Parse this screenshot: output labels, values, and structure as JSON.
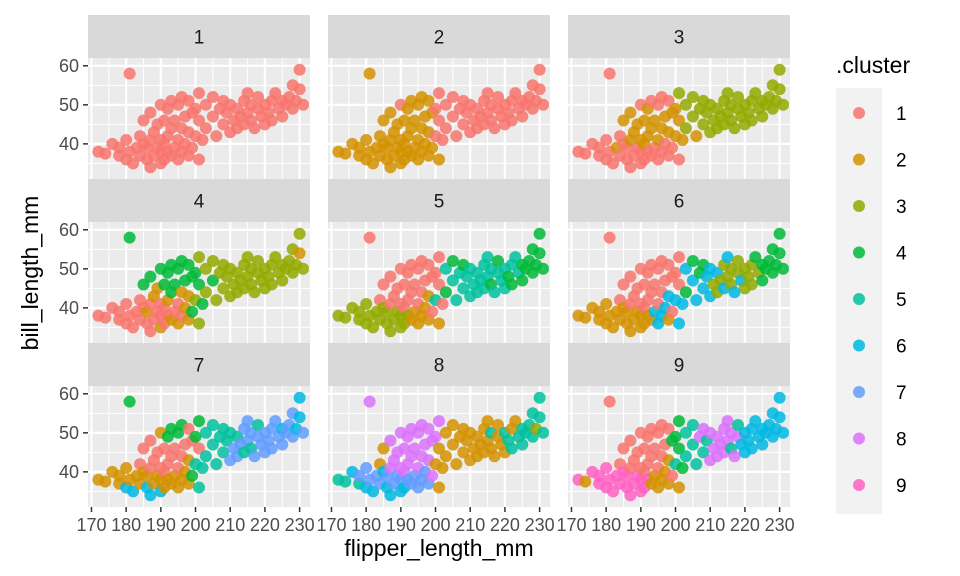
{
  "chart_data": {
    "type": "scatter",
    "facets": [
      "1",
      "2",
      "3",
      "4",
      "5",
      "6",
      "7",
      "8",
      "9"
    ],
    "xlabel": "flipper_length_mm",
    "ylabel": "bill_length_mm",
    "xlim": [
      169,
      233
    ],
    "ylim": [
      31,
      62
    ],
    "xticks": [
      170,
      180,
      190,
      200,
      210,
      220,
      230
    ],
    "yticks": [
      40,
      50,
      60
    ],
    "legend": {
      "title": ".cluster",
      "placement": "right",
      "entries": [
        {
          "label": "1",
          "color": "#F8766D"
        },
        {
          "label": "2",
          "color": "#D39200"
        },
        {
          "label": "3",
          "color": "#93AA00"
        },
        {
          "label": "4",
          "color": "#00BA38"
        },
        {
          "label": "5",
          "color": "#00C19F"
        },
        {
          "label": "6",
          "color": "#00B9E3"
        },
        {
          "label": "7",
          "color": "#619CFF"
        },
        {
          "label": "8",
          "color": "#DB72FB"
        },
        {
          "label": "9",
          "color": "#FF61C3"
        }
      ]
    },
    "points": [
      {
        "x": 172,
        "y": 38
      },
      {
        "x": 174,
        "y": 37.5
      },
      {
        "x": 176,
        "y": 40
      },
      {
        "x": 178,
        "y": 37
      },
      {
        "x": 178,
        "y": 39
      },
      {
        "x": 180,
        "y": 36
      },
      {
        "x": 180,
        "y": 41
      },
      {
        "x": 181,
        "y": 58
      },
      {
        "x": 181,
        "y": 38
      },
      {
        "x": 182,
        "y": 35
      },
      {
        "x": 183,
        "y": 39
      },
      {
        "x": 184,
        "y": 42
      },
      {
        "x": 184,
        "y": 37
      },
      {
        "x": 185,
        "y": 40
      },
      {
        "x": 185,
        "y": 46
      },
      {
        "x": 186,
        "y": 36
      },
      {
        "x": 186,
        "y": 39
      },
      {
        "x": 187,
        "y": 41
      },
      {
        "x": 187,
        "y": 34
      },
      {
        "x": 187,
        "y": 48
      },
      {
        "x": 188,
        "y": 37
      },
      {
        "x": 188,
        "y": 43
      },
      {
        "x": 189,
        "y": 39
      },
      {
        "x": 189,
        "y": 45
      },
      {
        "x": 190,
        "y": 35
      },
      {
        "x": 190,
        "y": 38
      },
      {
        "x": 190,
        "y": 41
      },
      {
        "x": 190,
        "y": 50
      },
      {
        "x": 191,
        "y": 36
      },
      {
        "x": 191,
        "y": 40
      },
      {
        "x": 191,
        "y": 46
      },
      {
        "x": 192,
        "y": 38
      },
      {
        "x": 192,
        "y": 42
      },
      {
        "x": 192,
        "y": 49
      },
      {
        "x": 193,
        "y": 37
      },
      {
        "x": 193,
        "y": 44
      },
      {
        "x": 193,
        "y": 51
      },
      {
        "x": 194,
        "y": 39
      },
      {
        "x": 194,
        "y": 46
      },
      {
        "x": 195,
        "y": 36
      },
      {
        "x": 195,
        "y": 41
      },
      {
        "x": 195,
        "y": 50
      },
      {
        "x": 196,
        "y": 38
      },
      {
        "x": 196,
        "y": 44
      },
      {
        "x": 196,
        "y": 52
      },
      {
        "x": 197,
        "y": 40
      },
      {
        "x": 197,
        "y": 47
      },
      {
        "x": 198,
        "y": 37
      },
      {
        "x": 198,
        "y": 43
      },
      {
        "x": 198,
        "y": 51
      },
      {
        "x": 199,
        "y": 39
      },
      {
        "x": 199,
        "y": 48
      },
      {
        "x": 200,
        "y": 42
      },
      {
        "x": 200,
        "y": 49
      },
      {
        "x": 201,
        "y": 36
      },
      {
        "x": 201,
        "y": 46
      },
      {
        "x": 201,
        "y": 53
      },
      {
        "x": 202,
        "y": 41
      },
      {
        "x": 203,
        "y": 50
      },
      {
        "x": 203,
        "y": 44
      },
      {
        "x": 205,
        "y": 47
      },
      {
        "x": 205,
        "y": 52
      },
      {
        "x": 206,
        "y": 42
      },
      {
        "x": 207,
        "y": 49
      },
      {
        "x": 208,
        "y": 45
      },
      {
        "x": 208,
        "y": 51
      },
      {
        "x": 209,
        "y": 48
      },
      {
        "x": 210,
        "y": 43
      },
      {
        "x": 210,
        "y": 50
      },
      {
        "x": 211,
        "y": 46
      },
      {
        "x": 212,
        "y": 49
      },
      {
        "x": 212,
        "y": 44
      },
      {
        "x": 213,
        "y": 47
      },
      {
        "x": 214,
        "y": 51
      },
      {
        "x": 214,
        "y": 45
      },
      {
        "x": 215,
        "y": 48
      },
      {
        "x": 215,
        "y": 53
      },
      {
        "x": 216,
        "y": 46
      },
      {
        "x": 216,
        "y": 50
      },
      {
        "x": 217,
        "y": 44
      },
      {
        "x": 218,
        "y": 49
      },
      {
        "x": 218,
        "y": 52
      },
      {
        "x": 219,
        "y": 47
      },
      {
        "x": 220,
        "y": 50
      },
      {
        "x": 220,
        "y": 45
      },
      {
        "x": 221,
        "y": 48
      },
      {
        "x": 222,
        "y": 51
      },
      {
        "x": 222,
        "y": 46
      },
      {
        "x": 223,
        "y": 53
      },
      {
        "x": 224,
        "y": 49
      },
      {
        "x": 225,
        "y": 51
      },
      {
        "x": 225,
        "y": 47
      },
      {
        "x": 226,
        "y": 50
      },
      {
        "x": 227,
        "y": 52
      },
      {
        "x": 228,
        "y": 49
      },
      {
        "x": 228,
        "y": 55
      },
      {
        "x": 229,
        "y": 51
      },
      {
        "x": 230,
        "y": 59
      },
      {
        "x": 230,
        "y": 54
      },
      {
        "x": 231,
        "y": 50
      }
    ],
    "cluster_assignments": [
      [
        1,
        1,
        1,
        1,
        1,
        1,
        1,
        1,
        1,
        1,
        1,
        1,
        1,
        1,
        1,
        1,
        1,
        1,
        1,
        1,
        1,
        1,
        1,
        1,
        1,
        1,
        1,
        1,
        1,
        1,
        1,
        1,
        1,
        1,
        1,
        1,
        1,
        1,
        1,
        1,
        1,
        1,
        1,
        1,
        1,
        1,
        1,
        1,
        1,
        1,
        1,
        1,
        1,
        1,
        1,
        1,
        1,
        1,
        1,
        1,
        1,
        1,
        1,
        1,
        1,
        1,
        1,
        1,
        1,
        1,
        1,
        1,
        1,
        1,
        1,
        1,
        1,
        1,
        1,
        1,
        1,
        1,
        1,
        1,
        1,
        1,
        1,
        1,
        1,
        1,
        1,
        1,
        1,
        1,
        1,
        1,
        1,
        1,
        1,
        1
      ],
      [
        2,
        2,
        2,
        2,
        2,
        2,
        2,
        2,
        2,
        2,
        2,
        2,
        2,
        2,
        2,
        2,
        2,
        2,
        2,
        2,
        2,
        2,
        2,
        2,
        2,
        2,
        2,
        1,
        2,
        2,
        2,
        2,
        2,
        2,
        2,
        2,
        2,
        2,
        2,
        2,
        2,
        2,
        2,
        2,
        2,
        2,
        2,
        2,
        2,
        2,
        2,
        2,
        1,
        1,
        2,
        1,
        1,
        1,
        1,
        1,
        1,
        1,
        1,
        1,
        1,
        1,
        1,
        1,
        1,
        1,
        1,
        1,
        1,
        1,
        1,
        1,
        1,
        1,
        1,
        1,
        1,
        1,
        1,
        1,
        1,
        1,
        1,
        1,
        1,
        1,
        1,
        1,
        1,
        1,
        1,
        1,
        1,
        1,
        1,
        1
      ],
      [
        1,
        1,
        1,
        1,
        1,
        1,
        1,
        1,
        1,
        1,
        2,
        1,
        1,
        1,
        2,
        1,
        1,
        2,
        1,
        2,
        1,
        2,
        1,
        2,
        1,
        1,
        2,
        1,
        1,
        2,
        2,
        1,
        2,
        2,
        1,
        2,
        1,
        1,
        2,
        1,
        2,
        1,
        1,
        2,
        1,
        1,
        2,
        1,
        2,
        1,
        1,
        2,
        2,
        2,
        1,
        2,
        3,
        2,
        3,
        3,
        3,
        3,
        2,
        3,
        3,
        3,
        3,
        3,
        3,
        3,
        3,
        3,
        3,
        3,
        3,
        3,
        3,
        3,
        3,
        3,
        3,
        3,
        3,
        3,
        3,
        3,
        3,
        3,
        3,
        3,
        3,
        3,
        3,
        3,
        3,
        3,
        3,
        3,
        3,
        3
      ],
      [
        1,
        1,
        1,
        1,
        1,
        1,
        1,
        4,
        1,
        1,
        1,
        1,
        1,
        1,
        4,
        1,
        2,
        1,
        1,
        4,
        1,
        2,
        1,
        2,
        2,
        1,
        1,
        4,
        1,
        1,
        4,
        1,
        2,
        4,
        2,
        4,
        4,
        1,
        4,
        2,
        1,
        4,
        1,
        2,
        4,
        2,
        4,
        2,
        2,
        4,
        4,
        4,
        3,
        4,
        3,
        4,
        3,
        4,
        3,
        3,
        4,
        3,
        3,
        3,
        3,
        3,
        3,
        3,
        3,
        3,
        3,
        3,
        3,
        3,
        3,
        3,
        3,
        3,
        3,
        3,
        3,
        3,
        3,
        3,
        3,
        3,
        3,
        3,
        3,
        3,
        3,
        3,
        3,
        3,
        3,
        3,
        3,
        3,
        2,
        3
      ],
      [
        3,
        3,
        3,
        3,
        3,
        3,
        3,
        1,
        3,
        3,
        3,
        1,
        3,
        3,
        1,
        3,
        3,
        1,
        3,
        1,
        3,
        1,
        3,
        1,
        3,
        3,
        1,
        1,
        3,
        1,
        1,
        3,
        1,
        1,
        2,
        1,
        1,
        2,
        1,
        2,
        1,
        1,
        2,
        1,
        1,
        2,
        1,
        2,
        2,
        1,
        1,
        1,
        5,
        1,
        2,
        1,
        1,
        1,
        5,
        4,
        5,
        4,
        5,
        5,
        5,
        4,
        5,
        5,
        5,
        5,
        5,
        5,
        5,
        5,
        5,
        5,
        5,
        4,
        5,
        5,
        5,
        4,
        5,
        5,
        5,
        4,
        5,
        4,
        5,
        5,
        4,
        4,
        4,
        4,
        4,
        4,
        4,
        4,
        4,
        4
      ],
      [
        2,
        2,
        2,
        2,
        2,
        2,
        2,
        1,
        2,
        2,
        2,
        1,
        2,
        2,
        1,
        2,
        2,
        1,
        2,
        1,
        2,
        1,
        2,
        1,
        2,
        2,
        1,
        1,
        2,
        1,
        1,
        2,
        1,
        1,
        2,
        1,
        1,
        6,
        1,
        6,
        1,
        1,
        6,
        1,
        1,
        6,
        1,
        2,
        6,
        1,
        1,
        1,
        6,
        1,
        6,
        1,
        1,
        6,
        6,
        4,
        6,
        4,
        6,
        4,
        6,
        4,
        6,
        6,
        6,
        3,
        6,
        3,
        3,
        3,
        6,
        3,
        6,
        3,
        3,
        6,
        3,
        3,
        6,
        3,
        3,
        3,
        3,
        3,
        4,
        3,
        4,
        4,
        4,
        4,
        4,
        4,
        4,
        4,
        4,
        4
      ],
      [
        2,
        2,
        2,
        2,
        2,
        6,
        2,
        4,
        2,
        6,
        2,
        1,
        2,
        2,
        1,
        6,
        2,
        1,
        6,
        1,
        2,
        1,
        2,
        1,
        6,
        2,
        1,
        2,
        2,
        1,
        1,
        2,
        1,
        4,
        2,
        1,
        4,
        2,
        1,
        2,
        1,
        4,
        2,
        1,
        4,
        2,
        1,
        2,
        2,
        1,
        4,
        1,
        5,
        4,
        5,
        1,
        4,
        5,
        5,
        5,
        5,
        5,
        5,
        5,
        5,
        5,
        5,
        7,
        5,
        7,
        5,
        7,
        7,
        7,
        5,
        7,
        7,
        5,
        7,
        7,
        7,
        5,
        7,
        7,
        7,
        7,
        7,
        7,
        7,
        7,
        6,
        7,
        7,
        7,
        7,
        7,
        6,
        6,
        6,
        7
      ],
      [
        5,
        5,
        6,
        5,
        7,
        6,
        7,
        8,
        7,
        6,
        7,
        2,
        7,
        6,
        2,
        6,
        7,
        8,
        6,
        8,
        7,
        8,
        7,
        8,
        6,
        7,
        8,
        8,
        6,
        8,
        8,
        7,
        8,
        8,
        7,
        8,
        8,
        7,
        8,
        7,
        8,
        8,
        7,
        8,
        8,
        7,
        8,
        7,
        8,
        8,
        8,
        8,
        2,
        8,
        2,
        2,
        8,
        2,
        2,
        2,
        2,
        2,
        2,
        2,
        2,
        2,
        2,
        2,
        2,
        2,
        2,
        2,
        2,
        2,
        2,
        2,
        2,
        2,
        5,
        2,
        2,
        2,
        2,
        5,
        2,
        5,
        2,
        5,
        2,
        5,
        5,
        5,
        5,
        5,
        5,
        5,
        3,
        5,
        5,
        5
      ],
      [
        9,
        2,
        9,
        9,
        9,
        9,
        9,
        1,
        9,
        9,
        9,
        1,
        9,
        9,
        1,
        9,
        9,
        1,
        9,
        1,
        9,
        1,
        9,
        1,
        9,
        9,
        1,
        1,
        9,
        1,
        1,
        9,
        1,
        1,
        2,
        1,
        1,
        2,
        1,
        2,
        1,
        1,
        2,
        1,
        1,
        2,
        1,
        2,
        2,
        1,
        1,
        4,
        5,
        4,
        2,
        4,
        4,
        4,
        5,
        5,
        5,
        5,
        5,
        8,
        5,
        8,
        5,
        8,
        8,
        8,
        8,
        8,
        8,
        8,
        8,
        8,
        8,
        5,
        8,
        8,
        8,
        5,
        6,
        6,
        6,
        6,
        6,
        6,
        6,
        6,
        6,
        6,
        6,
        6,
        6,
        6,
        6,
        6,
        6,
        6
      ]
    ]
  }
}
